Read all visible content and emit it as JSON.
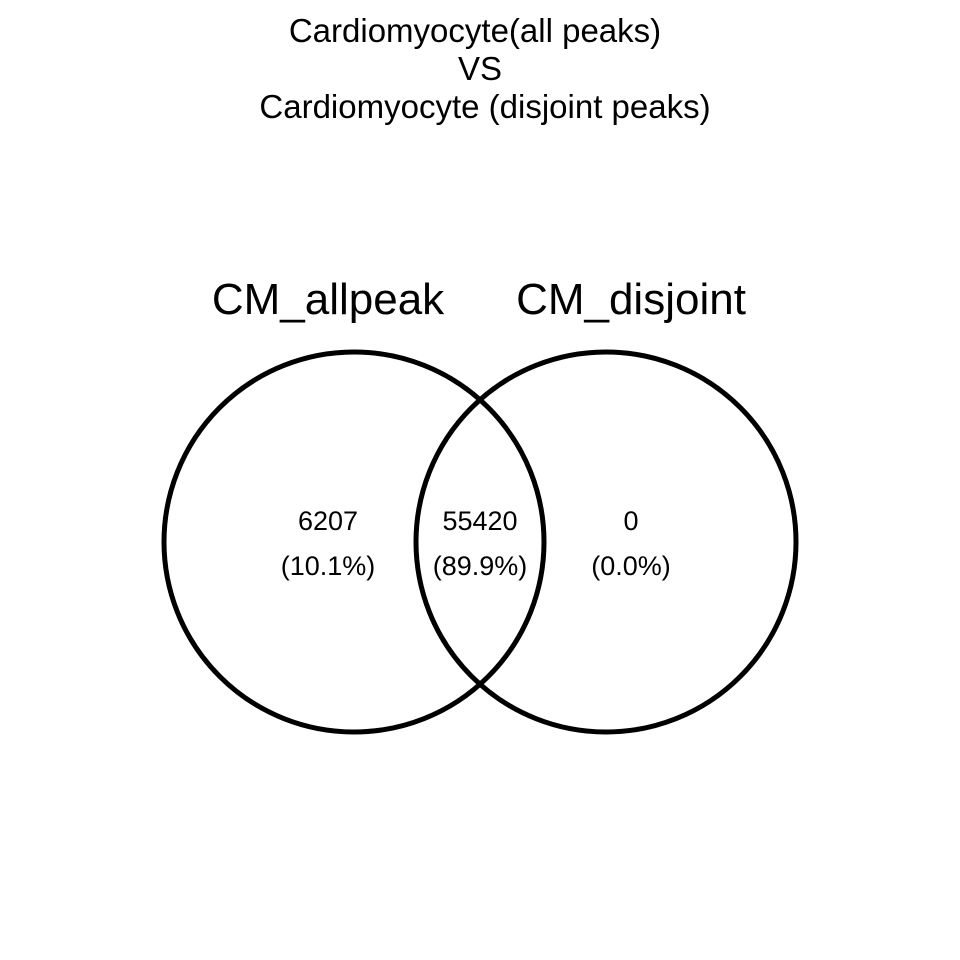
{
  "title": {
    "line1": "Cardiomyocyte(all peaks)",
    "line2": "VS",
    "line3": "Cardiomyocyte (disjoint peaks)"
  },
  "sets": {
    "left": {
      "label": "CM_allpeak"
    },
    "right": {
      "label": "CM_disjoint"
    }
  },
  "regions": {
    "left_only": {
      "count": "6207",
      "percent": "(10.1%)"
    },
    "overlap": {
      "count": "55420",
      "percent": "(89.9%)"
    },
    "right_only": {
      "count": "0",
      "percent": "(0.0%)"
    }
  },
  "colors": {
    "stroke": "#000000",
    "background": "#ffffff"
  }
}
